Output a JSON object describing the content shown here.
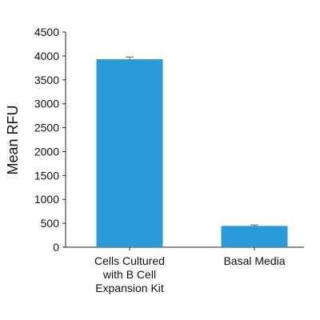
{
  "chart_data": {
    "type": "bar",
    "categories": [
      "Cells Cultured with B Cell Expansion Kit",
      "Basal Media"
    ],
    "category_label_lines": [
      [
        "Cells Cultured",
        "with B Cell",
        "Expansion Kit"
      ],
      [
        "Basal Media"
      ]
    ],
    "values": [
      3930,
      445
    ],
    "error": [
      45,
      20
    ],
    "title": "",
    "xlabel": "",
    "ylabel": "Mean RFU",
    "ylim": [
      0,
      4500
    ],
    "yticks": [
      0,
      500,
      1000,
      1500,
      2000,
      2500,
      3000,
      3500,
      4000,
      4500
    ],
    "grid": false,
    "bar_color": "#2b9ad8",
    "error_bar_color": "#777777",
    "axis_color": "#222222"
  }
}
